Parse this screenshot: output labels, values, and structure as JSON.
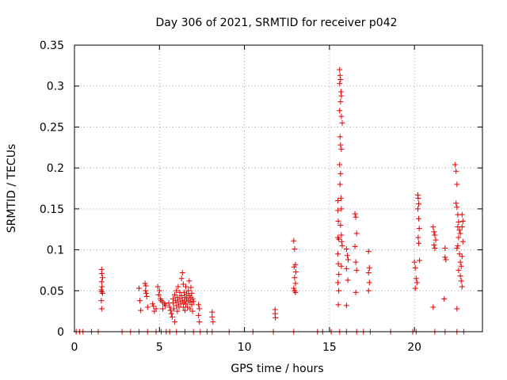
{
  "chart_data": {
    "type": "scatter",
    "title": "Day 306 of 2021, SRMTID for receiver p042",
    "xlabel": "GPS time / hours",
    "ylabel": "SRMTID / TECUs",
    "xlim": [
      0,
      24
    ],
    "ylim": [
      0,
      0.35
    ],
    "xticks": [
      0,
      5,
      10,
      15,
      20
    ],
    "xtick_labels": [
      "0",
      "5",
      "10",
      "15",
      "20"
    ],
    "yticks": [
      0,
      0.05,
      0.1,
      0.15,
      0.2,
      0.25,
      0.3,
      0.35
    ],
    "ytick_labels": [
      "0",
      "0.05",
      "0.1",
      "0.15",
      "0.2",
      "0.25",
      "0.3",
      "0.35"
    ],
    "grid": true,
    "marker": "+",
    "color": "#e00000",
    "series": [
      {
        "name": "SRMTID",
        "points": [
          [
            0.1,
            0
          ],
          [
            0.3,
            0
          ],
          [
            0.5,
            0
          ],
          [
            1.0,
            0
          ],
          [
            1.4,
            0
          ],
          [
            2.8,
            0
          ],
          [
            3.3,
            0
          ],
          [
            3.8,
            0
          ],
          [
            4.3,
            0
          ],
          [
            4.8,
            0
          ],
          [
            5.1,
            0
          ],
          [
            5.4,
            0
          ],
          [
            5.6,
            0
          ],
          [
            6.0,
            0
          ],
          [
            6.5,
            0
          ],
          [
            7.0,
            0
          ],
          [
            7.4,
            0
          ],
          [
            7.8,
            0
          ],
          [
            8.1,
            0
          ],
          [
            9.1,
            0
          ],
          [
            10.5,
            0
          ],
          [
            11.7,
            0
          ],
          [
            12.9,
            0
          ],
          [
            14.3,
            0
          ],
          [
            14.6,
            0
          ],
          [
            15.1,
            0
          ],
          [
            15.6,
            0
          ],
          [
            16.0,
            0
          ],
          [
            16.6,
            0
          ],
          [
            17.0,
            0
          ],
          [
            17.4,
            0
          ],
          [
            18.6,
            0
          ],
          [
            19.9,
            0
          ],
          [
            20.1,
            0
          ],
          [
            21.2,
            0
          ],
          [
            21.8,
            0
          ],
          [
            22.5,
            0
          ],
          [
            22.9,
            0
          ],
          [
            1.6,
            0.076
          ],
          [
            1.6,
            0.071
          ],
          [
            1.65,
            0.066
          ],
          [
            1.6,
            0.061
          ],
          [
            1.62,
            0.055
          ],
          [
            1.58,
            0.051
          ],
          [
            1.6,
            0.049
          ],
          [
            1.65,
            0.047
          ],
          [
            1.58,
            0.038
          ],
          [
            1.6,
            0.028
          ],
          [
            3.8,
            0.053
          ],
          [
            3.85,
            0.038
          ],
          [
            3.9,
            0.026
          ],
          [
            4.15,
            0.059
          ],
          [
            4.2,
            0.056
          ],
          [
            4.18,
            0.05
          ],
          [
            4.22,
            0.047
          ],
          [
            4.25,
            0.043
          ],
          [
            4.3,
            0.03
          ],
          [
            4.6,
            0.034
          ],
          [
            4.65,
            0.031
          ],
          [
            4.8,
            0.028
          ],
          [
            4.7,
            0.025
          ],
          [
            4.9,
            0.055
          ],
          [
            5.0,
            0.05
          ],
          [
            4.95,
            0.045
          ],
          [
            5.05,
            0.04
          ],
          [
            5.1,
            0.038
          ],
          [
            5.2,
            0.036
          ],
          [
            5.3,
            0.034
          ],
          [
            5.35,
            0.032
          ],
          [
            5.2,
            0.028
          ],
          [
            5.55,
            0.035
          ],
          [
            5.6,
            0.03
          ],
          [
            5.65,
            0.026
          ],
          [
            5.7,
            0.022
          ],
          [
            5.75,
            0.018
          ],
          [
            5.8,
            0.04
          ],
          [
            5.8,
            0.035
          ],
          [
            5.85,
            0.028
          ],
          [
            5.9,
            0.045
          ],
          [
            5.9,
            0.012
          ],
          [
            5.95,
            0.038
          ],
          [
            6.0,
            0.05
          ],
          [
            6.0,
            0.032
          ],
          [
            6.05,
            0.042
          ],
          [
            6.05,
            0.025
          ],
          [
            6.1,
            0.055
          ],
          [
            6.1,
            0.036
          ],
          [
            6.15,
            0.03
          ],
          [
            6.2,
            0.048
          ],
          [
            6.2,
            0.04
          ],
          [
            6.25,
            0.034
          ],
          [
            6.3,
            0.065
          ],
          [
            6.3,
            0.044
          ],
          [
            6.35,
            0.072
          ],
          [
            6.35,
            0.038
          ],
          [
            6.4,
            0.058
          ],
          [
            6.4,
            0.03
          ],
          [
            6.45,
            0.048
          ],
          [
            6.45,
            0.036
          ],
          [
            6.5,
            0.042
          ],
          [
            6.5,
            0.026
          ],
          [
            6.55,
            0.055
          ],
          [
            6.55,
            0.034
          ],
          [
            6.6,
            0.046
          ],
          [
            6.6,
            0.04
          ],
          [
            6.65,
            0.03
          ],
          [
            6.7,
            0.05
          ],
          [
            6.7,
            0.038
          ],
          [
            6.75,
            0.062
          ],
          [
            6.75,
            0.044
          ],
          [
            6.8,
            0.036
          ],
          [
            6.8,
            0.028
          ],
          [
            6.85,
            0.054
          ],
          [
            6.85,
            0.042
          ],
          [
            6.9,
            0.047
          ],
          [
            6.9,
            0.033
          ],
          [
            6.95,
            0.04
          ],
          [
            6.95,
            0.025
          ],
          [
            7.0,
            0.037
          ],
          [
            7.3,
            0.033
          ],
          [
            7.35,
            0.028
          ],
          [
            7.3,
            0.02
          ],
          [
            7.35,
            0.012
          ],
          [
            8.1,
            0.024
          ],
          [
            8.1,
            0.018
          ],
          [
            8.15,
            0.012
          ],
          [
            11.8,
            0.027
          ],
          [
            11.8,
            0.022
          ],
          [
            11.82,
            0.017
          ],
          [
            12.9,
            0.111
          ],
          [
            12.95,
            0.101
          ],
          [
            13.0,
            0.082
          ],
          [
            12.92,
            0.079
          ],
          [
            13.02,
            0.073
          ],
          [
            12.95,
            0.066
          ],
          [
            13.0,
            0.059
          ],
          [
            12.9,
            0.053
          ],
          [
            12.95,
            0.05
          ],
          [
            13.0,
            0.048
          ],
          [
            15.5,
            0.16
          ],
          [
            15.5,
            0.148
          ],
          [
            15.52,
            0.135
          ],
          [
            15.5,
            0.115
          ],
          [
            15.55,
            0.113
          ],
          [
            15.5,
            0.095
          ],
          [
            15.52,
            0.083
          ],
          [
            15.55,
            0.07
          ],
          [
            15.5,
            0.06
          ],
          [
            15.55,
            0.05
          ],
          [
            15.52,
            0.033
          ],
          [
            15.6,
            0.32
          ],
          [
            15.62,
            0.313
          ],
          [
            15.65,
            0.308
          ],
          [
            15.6,
            0.303
          ],
          [
            15.68,
            0.293
          ],
          [
            15.7,
            0.288
          ],
          [
            15.65,
            0.281
          ],
          [
            15.6,
            0.27
          ],
          [
            15.7,
            0.263
          ],
          [
            15.75,
            0.255
          ],
          [
            15.62,
            0.238
          ],
          [
            15.65,
            0.228
          ],
          [
            15.7,
            0.223
          ],
          [
            15.6,
            0.204
          ],
          [
            15.65,
            0.193
          ],
          [
            15.62,
            0.18
          ],
          [
            15.68,
            0.163
          ],
          [
            15.7,
            0.15
          ],
          [
            15.65,
            0.13
          ],
          [
            15.7,
            0.118
          ],
          [
            15.72,
            0.11
          ],
          [
            15.75,
            0.105
          ],
          [
            15.7,
            0.08
          ],
          [
            16.0,
            0.101
          ],
          [
            16.05,
            0.093
          ],
          [
            16.1,
            0.088
          ],
          [
            16.0,
            0.077
          ],
          [
            16.08,
            0.063
          ],
          [
            16.0,
            0.032
          ],
          [
            16.5,
            0.144
          ],
          [
            16.55,
            0.14
          ],
          [
            16.6,
            0.12
          ],
          [
            16.5,
            0.104
          ],
          [
            16.55,
            0.085
          ],
          [
            16.6,
            0.075
          ],
          [
            16.55,
            0.048
          ],
          [
            17.3,
            0.098
          ],
          [
            17.35,
            0.078
          ],
          [
            17.3,
            0.072
          ],
          [
            17.35,
            0.06
          ],
          [
            17.3,
            0.05
          ],
          [
            20.0,
            0.085
          ],
          [
            20.05,
            0.078
          ],
          [
            20.1,
            0.065
          ],
          [
            20.15,
            0.06
          ],
          [
            20.05,
            0.053
          ],
          [
            20.2,
            0.167
          ],
          [
            20.22,
            0.163
          ],
          [
            20.25,
            0.156
          ],
          [
            20.2,
            0.15
          ],
          [
            20.25,
            0.138
          ],
          [
            20.28,
            0.126
          ],
          [
            20.22,
            0.115
          ],
          [
            20.25,
            0.108
          ],
          [
            20.3,
            0.087
          ],
          [
            21.1,
            0.128
          ],
          [
            21.15,
            0.122
          ],
          [
            21.2,
            0.118
          ],
          [
            21.25,
            0.112
          ],
          [
            21.15,
            0.106
          ],
          [
            21.2,
            0.102
          ],
          [
            21.1,
            0.03
          ],
          [
            21.8,
            0.091
          ],
          [
            21.85,
            0.088
          ],
          [
            21.8,
            0.102
          ],
          [
            21.75,
            0.04
          ],
          [
            22.4,
            0.204
          ],
          [
            22.45,
            0.196
          ],
          [
            22.5,
            0.18
          ],
          [
            22.45,
            0.157
          ],
          [
            22.5,
            0.152
          ],
          [
            22.55,
            0.143
          ],
          [
            22.6,
            0.134
          ],
          [
            22.55,
            0.128
          ],
          [
            22.65,
            0.124
          ],
          [
            22.7,
            0.12
          ],
          [
            22.6,
            0.115
          ],
          [
            22.55,
            0.105
          ],
          [
            22.5,
            0.102
          ],
          [
            22.65,
            0.095
          ],
          [
            22.7,
            0.085
          ],
          [
            22.75,
            0.08
          ],
          [
            22.6,
            0.075
          ],
          [
            22.7,
            0.068
          ],
          [
            22.75,
            0.062
          ],
          [
            22.8,
            0.055
          ],
          [
            22.5,
            0.028
          ],
          [
            22.8,
            0.143
          ],
          [
            22.85,
            0.135
          ],
          [
            22.8,
            0.128
          ],
          [
            22.85,
            0.11
          ],
          [
            22.8,
            0.092
          ]
        ]
      }
    ]
  }
}
